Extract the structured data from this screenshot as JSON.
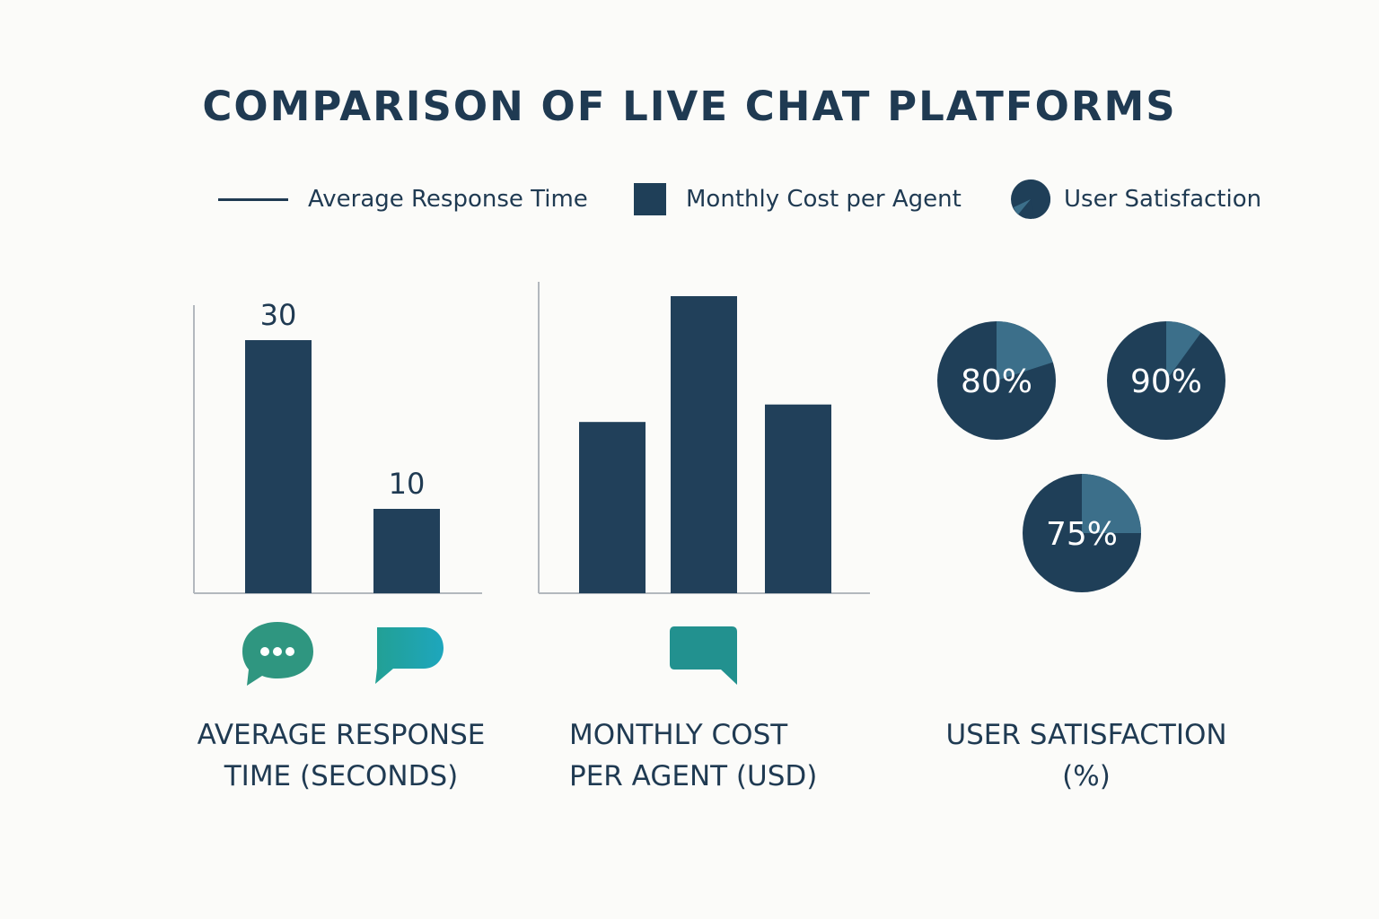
{
  "title": "COMPARISON OF LIVE CHAT PLATFORMS",
  "legend": [
    {
      "label": "Average Response Time",
      "marker": "line"
    },
    {
      "label": "Monthly Cost per Agent",
      "marker": "square"
    },
    {
      "label": "User Satisfaction",
      "marker": "pie"
    }
  ],
  "colors": {
    "bar": "#21405a",
    "pie_main": "#1f3f58",
    "pie_slice": "#3c6f8a",
    "axis": "#b3b8be",
    "icon_green": "#2f9680",
    "icon_teal": "#20a3ac",
    "icon_teal_dark": "#22918f",
    "text": "#1f3a52"
  },
  "captions": {
    "response": [
      "AVERAGE RESPONSE",
      "TIME (SECONDS)"
    ],
    "cost": [
      "MONTHLY COST",
      "PER AGENT (USD)"
    ],
    "satisfaction": [
      "USER SATISFACTION",
      "(%)"
    ]
  },
  "icons": [
    "chat-bubble-dots-icon",
    "chat-bubble-icon",
    "chat-bubble-square-icon"
  ],
  "chart_data": [
    {
      "type": "bar",
      "title": "AVERAGE RESPONSE TIME (SECONDS)",
      "values": [
        30,
        10
      ],
      "data_labels": [
        "30",
        "10"
      ],
      "ylim": [
        0,
        34
      ],
      "grid": false
    },
    {
      "type": "bar",
      "title": "MONTHLY COST PER AGENT (USD)",
      "values": [
        49,
        85,
        54
      ],
      "ylim": [
        0,
        90
      ],
      "grid": false
    },
    {
      "type": "pie",
      "title": "USER SATISFACTION (%)",
      "values": [
        80,
        90,
        75
      ],
      "labels": [
        "80%",
        "90%",
        "75%"
      ]
    }
  ]
}
